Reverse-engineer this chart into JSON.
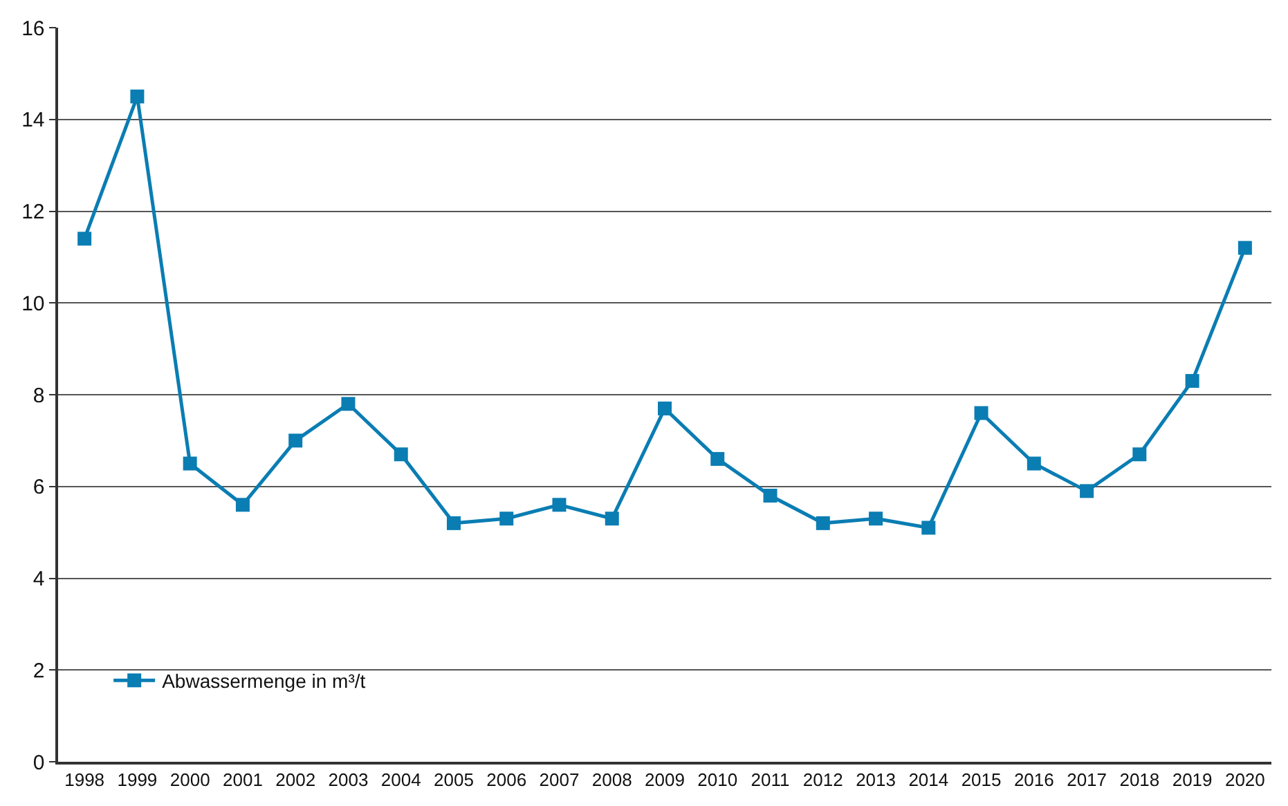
{
  "chart_data": {
    "type": "line",
    "categories": [
      "1998",
      "1999",
      "2000",
      "2001",
      "2002",
      "2003",
      "2004",
      "2005",
      "2006",
      "2007",
      "2008",
      "2009",
      "2010",
      "2011",
      "2012",
      "2013",
      "2014",
      "2015",
      "2016",
      "2017",
      "2018",
      "2019",
      "2020"
    ],
    "series": [
      {
        "name": "Abwassermenge in m³/t",
        "color": "#0a7db3",
        "values": [
          11.4,
          14.5,
          6.5,
          5.6,
          7.0,
          7.8,
          6.7,
          5.2,
          5.3,
          5.6,
          5.3,
          7.7,
          6.6,
          5.8,
          5.2,
          5.3,
          5.1,
          7.6,
          6.5,
          5.9,
          6.7,
          8.3,
          11.2
        ]
      }
    ],
    "ylim": [
      0,
      16
    ],
    "yticks": [
      0,
      2,
      4,
      6,
      8,
      10,
      12,
      14,
      16
    ],
    "grid": "y",
    "legend": "bottom left",
    "marker": "square",
    "line_style": "solid"
  }
}
